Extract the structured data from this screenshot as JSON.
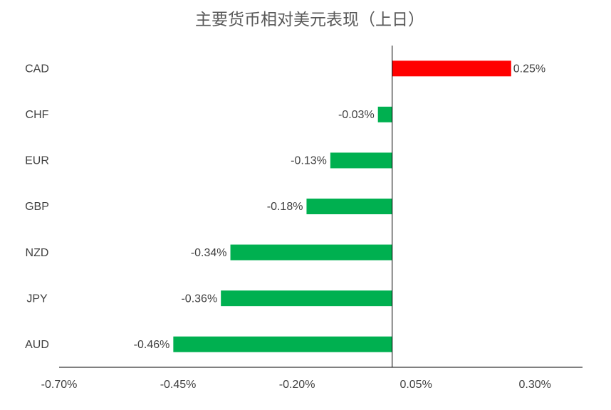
{
  "chart_data": {
    "type": "hbar",
    "title": "主要货币相对美元表现（上日）",
    "categories": [
      "CAD",
      "CHF",
      "EUR",
      "GBP",
      "NZD",
      "JPY",
      "AUD"
    ],
    "values": [
      0.25,
      -0.03,
      -0.13,
      -0.18,
      -0.34,
      -0.36,
      -0.46
    ],
    "value_labels": [
      "0.25%",
      "-0.03%",
      "-0.13%",
      "-0.18%",
      "-0.34%",
      "-0.36%",
      "-0.46%"
    ],
    "positive_color": "#ff0000",
    "negative_color": "#00b050",
    "xlim": [
      -0.7,
      0.4
    ],
    "xticks": [
      {
        "value": -0.7,
        "label": "-0.70%"
      },
      {
        "value": -0.45,
        "label": "-0.45%"
      },
      {
        "value": -0.2,
        "label": "-0.20%"
      },
      {
        "value": 0.05,
        "label": "0.05%"
      },
      {
        "value": 0.3,
        "label": "0.30%"
      }
    ],
    "grid": false
  }
}
